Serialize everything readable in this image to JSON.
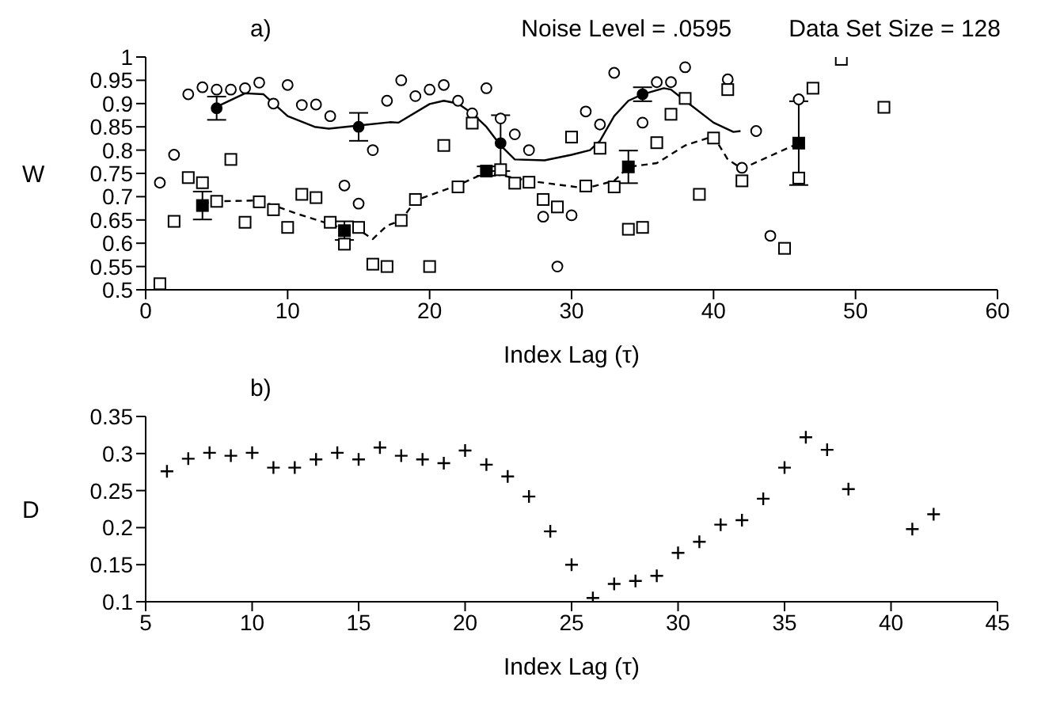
{
  "chart_data": [
    {
      "type": "scatter",
      "title": "a)",
      "annotations": [
        "Noise Level = .0595",
        "Data Set Size = 128"
      ],
      "xlabel": "Index Lag (τ)",
      "ylabel": "W",
      "xlim": [
        0,
        60
      ],
      "xticks": [
        0,
        10,
        20,
        30,
        40,
        50,
        60
      ],
      "ylim": [
        0.5,
        1
      ],
      "yticks": [
        0.5,
        0.55,
        0.6,
        0.65,
        0.7,
        0.75,
        0.8,
        0.85,
        0.9,
        0.95,
        1
      ],
      "series": [
        {
          "marker": "circle",
          "color": "#000000",
          "x": [
            1,
            2,
            3,
            4,
            5,
            6,
            7,
            8,
            9,
            10,
            11,
            12,
            13,
            14,
            15,
            16,
            17,
            18,
            19,
            20,
            21,
            22,
            23,
            24,
            25,
            26,
            27,
            28,
            29,
            30,
            31,
            32,
            33,
            35,
            36,
            37,
            38,
            41,
            42,
            43,
            44,
            46
          ],
          "values": [
            0.73,
            0.79,
            0.92,
            0.935,
            0.93,
            0.93,
            0.933,
            0.945,
            0.9,
            0.94,
            0.897,
            0.898,
            0.873,
            0.724,
            0.685,
            0.8,
            0.906,
            0.95,
            0.916,
            0.93,
            0.94,
            0.906,
            0.879,
            0.933,
            0.868,
            0.834,
            0.8,
            0.657,
            0.55,
            0.66,
            0.883,
            0.855,
            0.966,
            0.859,
            0.946,
            0.946,
            0.978,
            0.952,
            0.762,
            0.841,
            0.616,
            0.909
          ]
        },
        {
          "marker": "square",
          "color": "#000000",
          "x": [
            1,
            2,
            3,
            4,
            5,
            6,
            7,
            8,
            9,
            10,
            11,
            12,
            13,
            14,
            15,
            16,
            17,
            18,
            19,
            20,
            21,
            22,
            23,
            24,
            25,
            26,
            27,
            28,
            29,
            30,
            31,
            32,
            33,
            34,
            35,
            36,
            37,
            38,
            39,
            40,
            41,
            42,
            45,
            46,
            47,
            49,
            52
          ],
          "values": [
            0.513,
            0.647,
            0.741,
            0.73,
            0.69,
            0.78,
            0.645,
            0.689,
            0.672,
            0.634,
            0.705,
            0.698,
            0.645,
            0.598,
            0.634,
            0.555,
            0.55,
            0.649,
            0.694,
            0.55,
            0.81,
            0.721,
            0.858,
            null,
            0.758,
            0.729,
            0.731,
            0.694,
            0.678,
            0.828,
            0.723,
            0.804,
            0.721,
            0.63,
            0.634,
            0.816,
            0.877,
            0.911,
            0.705,
            0.826,
            0.93,
            0.734,
            0.589,
            0.74,
            0.933,
            0.995,
            0.892
          ]
        },
        {
          "type": "line",
          "marker": "none",
          "line_style": "solid",
          "color": "#000000",
          "x": [
            5,
            7,
            8.3,
            10,
            11.9,
            12.9,
            15,
            17.2,
            17.8,
            20,
            21,
            22,
            23,
            24,
            25,
            26,
            28.1,
            30,
            31.3,
            32,
            33,
            34,
            35,
            36.5,
            37,
            38,
            40,
            41.4,
            41.9
          ],
          "values": [
            0.893,
            0.922,
            0.92,
            0.873,
            0.85,
            0.846,
            0.853,
            0.86,
            0.859,
            0.899,
            0.906,
            0.9,
            0.879,
            0.85,
            0.81,
            0.78,
            0.778,
            0.79,
            0.8,
            0.82,
            0.873,
            0.906,
            0.92,
            0.933,
            0.93,
            0.906,
            0.859,
            0.839,
            0.841
          ]
        },
        {
          "type": "line",
          "marker": "none",
          "line_style": "dashed",
          "color": "#000000",
          "x": [
            4,
            5,
            8,
            10.8,
            14,
            15,
            16,
            17,
            18,
            19,
            22,
            24,
            27,
            31,
            33,
            34,
            36,
            38,
            40,
            41,
            42,
            46
          ],
          "values": [
            0.685,
            0.69,
            0.692,
            0.662,
            0.631,
            0.629,
            0.609,
            0.638,
            0.649,
            0.692,
            0.725,
            0.752,
            0.734,
            0.718,
            0.734,
            0.764,
            0.772,
            0.81,
            0.83,
            0.78,
            0.76,
            0.815
          ]
        },
        {
          "marker": "circle",
          "color": "#000000",
          "x": [
            5,
            15,
            25,
            35
          ],
          "values": [
            0.89,
            0.85,
            0.815,
            0.92
          ],
          "errors": [
            0.025,
            0.03,
            0.06,
            0.015
          ]
        },
        {
          "marker": "square",
          "color": "#000000",
          "x": [
            4,
            14,
            24,
            34,
            46
          ],
          "values": [
            0.681,
            0.627,
            0.755,
            0.764,
            0.815
          ],
          "errors": [
            0.03,
            0.02,
            0.01,
            0.035,
            0.09
          ]
        }
      ]
    },
    {
      "type": "scatter",
      "title": "b)",
      "xlabel": "Index Lag (τ)",
      "ylabel": "D",
      "xlim": [
        5,
        45
      ],
      "xticks": [
        5,
        10,
        15,
        20,
        25,
        30,
        35,
        40,
        45
      ],
      "ylim": [
        0.1,
        0.35
      ],
      "yticks": [
        0.1,
        0.15,
        0.2,
        0.25,
        0.3,
        0.35
      ],
      "marker": "cross",
      "color": "#000000",
      "x": [
        6,
        7,
        8,
        9,
        10,
        11,
        12,
        13,
        14,
        15,
        16,
        17,
        18,
        19,
        20,
        21,
        22,
        23,
        24,
        25,
        26,
        27,
        28,
        29,
        30,
        31,
        32,
        33,
        34,
        35,
        36,
        37,
        38,
        41,
        42
      ],
      "values": [
        0.276,
        0.293,
        0.301,
        0.297,
        0.301,
        0.281,
        0.281,
        0.292,
        0.301,
        0.292,
        0.308,
        0.297,
        0.292,
        0.287,
        0.304,
        0.285,
        0.269,
        0.242,
        0.195,
        0.15,
        0.105,
        0.124,
        0.128,
        0.135,
        0.166,
        0.181,
        0.204,
        0.21,
        0.239,
        0.281,
        0.322,
        0.305,
        0.252,
        0.198,
        0.218
      ]
    }
  ]
}
